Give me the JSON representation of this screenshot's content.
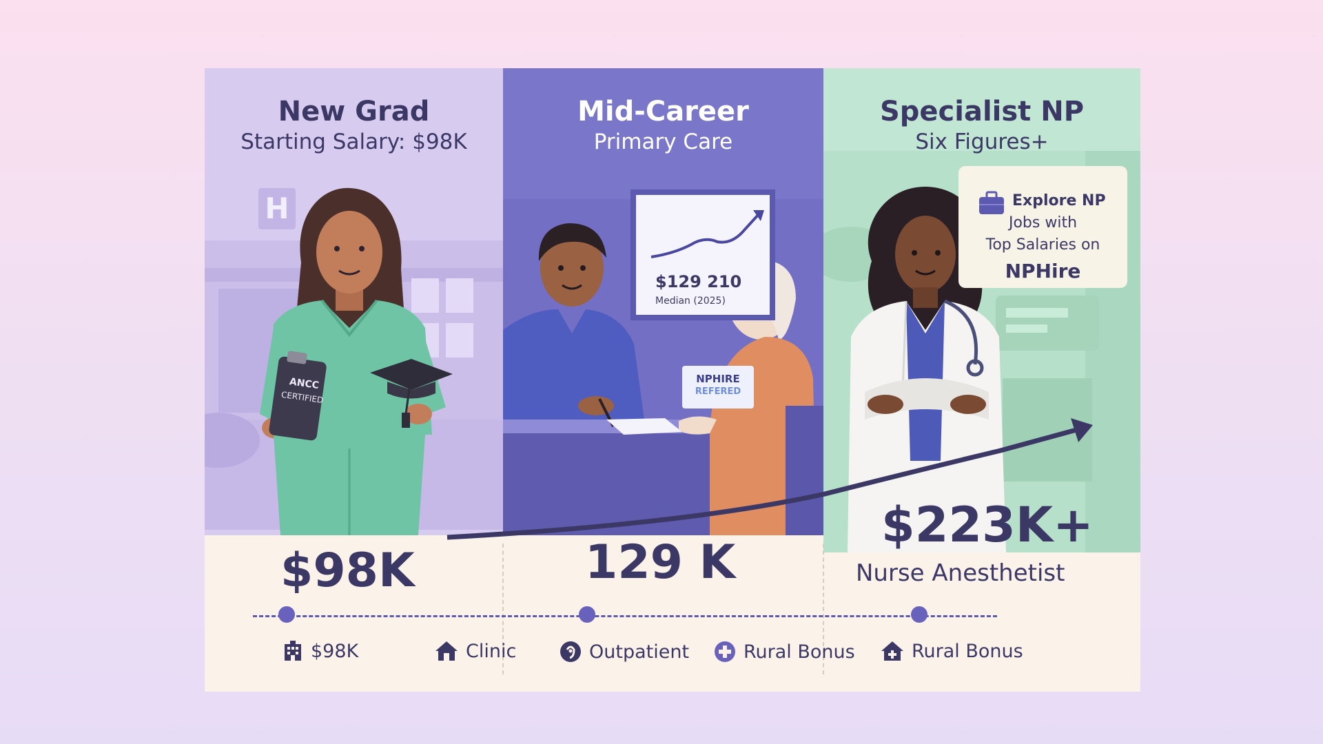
{
  "panels": [
    {
      "title": "New Grad",
      "subtitle": "Starting Salary: $98K"
    },
    {
      "title": "Mid-Career",
      "subtitle": "Primary Care"
    },
    {
      "title": "Specialist NP",
      "subtitle": "Six Figures+"
    }
  ],
  "scene": {
    "hospital_sign": "H",
    "clipboard_line1": "ANCC",
    "clipboard_line2": "CERTIFIED",
    "chart_value": "$129 210",
    "chart_caption": "Median (2025)",
    "badge_line1": "NPHIRE",
    "badge_line2": "REFERED"
  },
  "promo": {
    "line1": "Explore NP",
    "line2": "Jobs with",
    "line3": "Top Salaries on",
    "brand": "NPHire"
  },
  "amounts": {
    "new_grad": "$98K",
    "mid_career": "129 K",
    "specialist": "$223K+",
    "specialist_role": "Nurse Anesthetist"
  },
  "legend": [
    {
      "icon": "building-icon",
      "label": "$98K"
    },
    {
      "icon": "house-icon",
      "label": "Clinic"
    },
    {
      "icon": "outpatient-icon",
      "label": "Outpatient"
    },
    {
      "icon": "medical-cross-icon",
      "label": "Rural Bonus"
    },
    {
      "icon": "house-cross-icon",
      "label": "Rural Bonus"
    }
  ],
  "colors": {
    "panel_new_grad": "#d7ccf0",
    "panel_mid_career": "#7a76c9",
    "panel_specialist": "#c1e6d3",
    "accent": "#3b3866"
  }
}
